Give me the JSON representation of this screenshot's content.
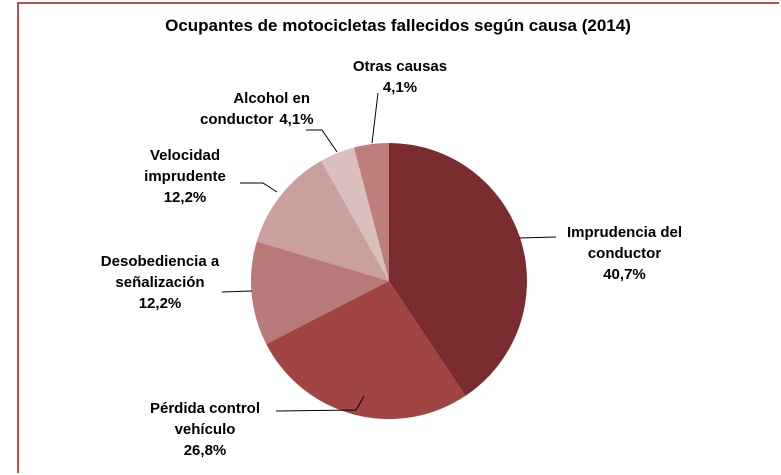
{
  "chart_data": {
    "type": "pie",
    "title": "Ocupantes de motocicletas fallecidos según causa (2014)",
    "categories": [
      "Imprudencia del conductor",
      "Pérdida control vehículo",
      "Desobediencia a señalización",
      "Velocidad imprudente",
      "Alcohol en conductor",
      "Otras causas"
    ],
    "values": [
      40.7,
      26.8,
      12.2,
      12.2,
      4.1,
      4.1
    ],
    "value_labels": [
      "40,7%",
      "26,8%",
      "12,2%",
      "12,2%",
      "4,1%",
      "4,1%"
    ],
    "colors": [
      "#7b2c2e",
      "#a04444",
      "#b87a78",
      "#c9a09e",
      "#d9bfbe",
      "#be7e7c"
    ]
  }
}
